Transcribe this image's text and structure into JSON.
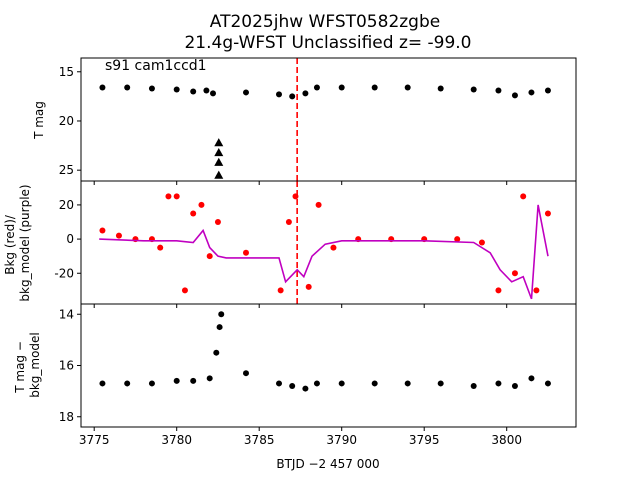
{
  "chart_data": [
    {
      "type": "scatter",
      "title": "AT2025jhw  WFST0582zgbe",
      "subtitle": "21.4g-WFST Unclassified z= -99.0",
      "annotation": "s91 cam1ccd1",
      "xlabel": "BTJD −2 457 000",
      "ylabel": "T mag",
      "xlim": [
        3774.2,
        3804.2
      ],
      "ylim": [
        26.1,
        13.6
      ],
      "y_inverted": true,
      "yticks": [
        15,
        20,
        25
      ],
      "xticks": [
        3775,
        3780,
        3785,
        3790,
        3795,
        3800
      ],
      "vline_x": 3787.3,
      "vline_color": "#ff0000",
      "series": [
        {
          "color": "#000000",
          "marker": "circle",
          "x": [
            3775.5,
            3777.0,
            3778.5,
            3780.0,
            3781.0,
            3781.8,
            3782.2,
            3784.2,
            3786.2,
            3787.0,
            3787.8,
            3788.5,
            3790.0,
            3792.0,
            3794.0,
            3796.0,
            3798.0,
            3799.5,
            3800.5,
            3801.5,
            3802.5
          ],
          "values": [
            16.6,
            16.6,
            16.7,
            16.8,
            17.0,
            16.9,
            17.2,
            17.1,
            17.3,
            17.5,
            17.2,
            16.6,
            16.6,
            16.6,
            16.6,
            16.7,
            16.8,
            16.9,
            17.4,
            17.1,
            16.9
          ]
        },
        {
          "color": "#000000",
          "marker": "triangle",
          "x": [
            3782.55,
            3782.55,
            3782.55,
            3782.55
          ],
          "values": [
            22.2,
            23.2,
            24.2,
            25.5
          ]
        }
      ]
    },
    {
      "type": "scatter",
      "ylabel": "Bkg (red)/\nbkg_model (purple)",
      "xlim": [
        3774.2,
        3804.2
      ],
      "ylim": [
        -38,
        34
      ],
      "yticks": [
        -20,
        0,
        20
      ],
      "vline_x": 3787.3,
      "series": [
        {
          "color": "#ff0000",
          "marker": "circle",
          "x": [
            3775.5,
            3776.5,
            3777.5,
            3778.5,
            3779.0,
            3779.5,
            3780.0,
            3780.5,
            3781.0,
            3781.5,
            3782.0,
            3782.5,
            3784.2,
            3786.3,
            3786.8,
            3787.2,
            3788.0,
            3788.6,
            3789.5,
            3791.0,
            3793.0,
            3795.0,
            3797.0,
            3798.5,
            3799.5,
            3800.5,
            3801.0,
            3801.8,
            3802.5
          ],
          "values": [
            5,
            2,
            0,
            0,
            -5,
            25,
            25,
            -30,
            15,
            20,
            -10,
            10,
            -8,
            -30,
            10,
            25,
            -28,
            20,
            -5,
            0,
            0,
            0,
            0,
            -2,
            -30,
            -20,
            25,
            -30,
            15
          ]
        },
        {
          "color": "#c000c0",
          "marker": "line",
          "x": [
            3775.3,
            3778.0,
            3780.0,
            3781.0,
            3781.6,
            3782.0,
            3782.5,
            3783.0,
            3785.0,
            3786.2,
            3786.6,
            3787.3,
            3787.7,
            3788.2,
            3789.0,
            3790.0,
            3795.0,
            3798.0,
            3799.0,
            3799.6,
            3800.3,
            3801.0,
            3801.5,
            3801.9,
            3802.5
          ],
          "values": [
            0,
            -1,
            -1,
            -2,
            5,
            -5,
            -10,
            -11,
            -11,
            -11,
            -25,
            -18,
            -22,
            -10,
            -3,
            -1,
            -1,
            -2,
            -8,
            -18,
            -25,
            -22,
            -35,
            20,
            -10
          ]
        }
      ]
    },
    {
      "type": "scatter",
      "xlabel": "BTJD −2 457 000",
      "ylabel": "T mag −\nbkg_model",
      "xlim": [
        3774.2,
        3804.2
      ],
      "ylim": [
        18.4,
        13.6
      ],
      "y_inverted": true,
      "yticks": [
        14,
        16,
        18
      ],
      "xticks": [
        3775,
        3780,
        3785,
        3790,
        3795,
        3800
      ],
      "series": [
        {
          "color": "#000000",
          "marker": "circle",
          "x": [
            3775.5,
            3777.0,
            3778.5,
            3780.0,
            3781.0,
            3782.0,
            3782.4,
            3782.6,
            3782.7,
            3784.2,
            3786.2,
            3787.0,
            3787.8,
            3788.5,
            3790.0,
            3792.0,
            3794.0,
            3796.0,
            3798.0,
            3799.5,
            3800.5,
            3801.5,
            3802.5
          ],
          "values": [
            16.7,
            16.7,
            16.7,
            16.6,
            16.6,
            16.5,
            15.5,
            14.5,
            14.0,
            16.3,
            16.7,
            16.8,
            16.9,
            16.7,
            16.7,
            16.7,
            16.7,
            16.7,
            16.8,
            16.7,
            16.8,
            16.5,
            16.7
          ]
        }
      ]
    }
  ]
}
